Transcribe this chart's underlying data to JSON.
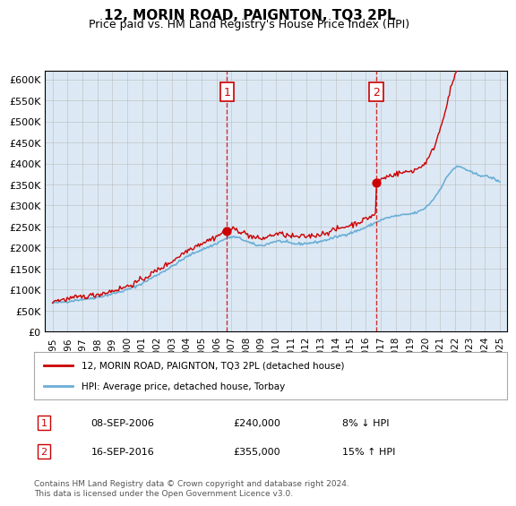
{
  "title": "12, MORIN ROAD, PAIGNTON, TQ3 2PL",
  "subtitle": "Price paid vs. HM Land Registry's House Price Index (HPI)",
  "background_color": "#dce9f5",
  "plot_bg_color": "#dce9f5",
  "ylim": [
    0,
    620000
  ],
  "yticks": [
    0,
    50000,
    100000,
    150000,
    200000,
    250000,
    300000,
    350000,
    400000,
    450000,
    500000,
    550000,
    600000
  ],
  "ytick_labels": [
    "£0",
    "£50K",
    "£100K",
    "£150K",
    "£200K",
    "£250K",
    "£300K",
    "£350K",
    "£400K",
    "£450K",
    "£500K",
    "£550K",
    "£600K"
  ],
  "sale1_date": 2006.69,
  "sale1_price": 240000,
  "sale2_date": 2016.71,
  "sale2_price": 355000,
  "hpi_color": "#6baed6",
  "sale_color": "#cc0000",
  "legend_label1": "12, MORIN ROAD, PAIGNTON, TQ3 2PL (detached house)",
  "legend_label2": "HPI: Average price, detached house, Torbay",
  "table_row1": [
    "1",
    "08-SEP-2006",
    "£240,000",
    "8% ↓ HPI"
  ],
  "table_row2": [
    "2",
    "16-SEP-2016",
    "£355,000",
    "15% ↑ HPI"
  ],
  "footnote": "Contains HM Land Registry data © Crown copyright and database right 2024.\nThis data is licensed under the Open Government Licence v3.0.",
  "xmin": 1994.5,
  "xmax": 2025.5
}
